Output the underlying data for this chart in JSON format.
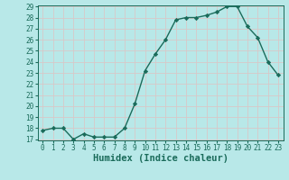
{
  "x": [
    0,
    1,
    2,
    3,
    4,
    5,
    6,
    7,
    8,
    9,
    10,
    11,
    12,
    13,
    14,
    15,
    16,
    17,
    18,
    19,
    20,
    21,
    22,
    23
  ],
  "y": [
    17.8,
    18.0,
    18.0,
    17.0,
    17.5,
    17.2,
    17.2,
    17.2,
    18.0,
    20.2,
    23.2,
    24.7,
    26.0,
    27.8,
    28.0,
    28.0,
    28.2,
    28.5,
    29.0,
    29.0,
    27.2,
    26.2,
    24.0,
    22.8
  ],
  "line_color": "#1a6b5a",
  "marker": "D",
  "marker_size": 2.2,
  "bg_color": "#b8e8e8",
  "grid_color": "#d8c8c8",
  "xlabel": "Humidex (Indice chaleur)",
  "ylim": [
    17,
    29
  ],
  "xlim": [
    -0.5,
    23.5
  ],
  "yticks": [
    17,
    18,
    19,
    20,
    21,
    22,
    23,
    24,
    25,
    26,
    27,
    28,
    29
  ],
  "xticks": [
    0,
    1,
    2,
    3,
    4,
    5,
    6,
    7,
    8,
    9,
    10,
    11,
    12,
    13,
    14,
    15,
    16,
    17,
    18,
    19,
    20,
    21,
    22,
    23
  ],
  "tick_fontsize": 5.5,
  "xlabel_fontsize": 7.5,
  "line_width": 1.0
}
